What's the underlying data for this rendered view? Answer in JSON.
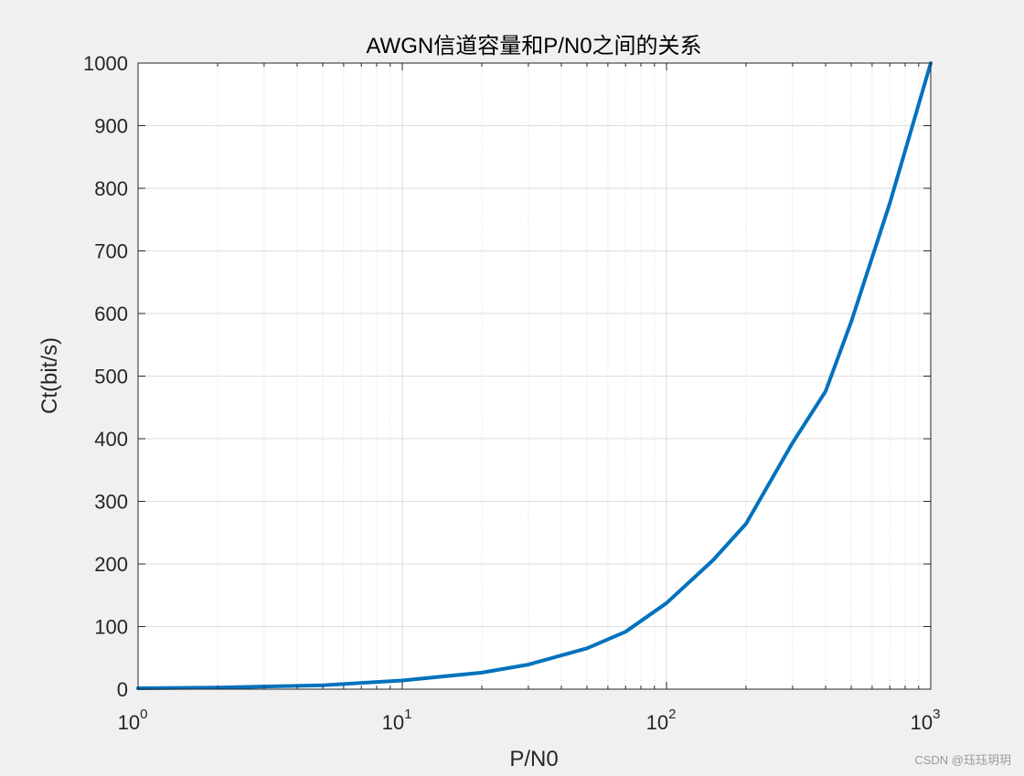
{
  "chart_data": {
    "type": "line",
    "title": "AWGN信道容量和P/N0之间的关系",
    "xlabel": "P/N0",
    "ylabel": "Ct(bit/s)",
    "xscale": "log",
    "xlim": [
      1,
      1000
    ],
    "ylim": [
      0,
      1000
    ],
    "grid": true,
    "minor_grid_x": true,
    "xticks": [
      {
        "value": 1,
        "base": "10",
        "exp": "0"
      },
      {
        "value": 10,
        "base": "10",
        "exp": "1"
      },
      {
        "value": 100,
        "base": "10",
        "exp": "2"
      },
      {
        "value": 1000,
        "base": "10",
        "exp": "3"
      }
    ],
    "yticks": [
      "0",
      "100",
      "200",
      "300",
      "400",
      "500",
      "600",
      "700",
      "800",
      "900",
      "1000"
    ],
    "series": [
      {
        "color": "#0072bd",
        "x": [
          1,
          2,
          5,
          10,
          20,
          30,
          50,
          70,
          100,
          150,
          200,
          300,
          400,
          500,
          700,
          1000
        ],
        "y": [
          1.4,
          2.6,
          6.3,
          13.8,
          26.4,
          39.3,
          65.2,
          91.7,
          137.5,
          206,
          264.2,
          393.6,
          475.8,
          586.7,
          776,
          1000
        ]
      }
    ]
  },
  "watermark": "CSDN @珏珏玥玥"
}
